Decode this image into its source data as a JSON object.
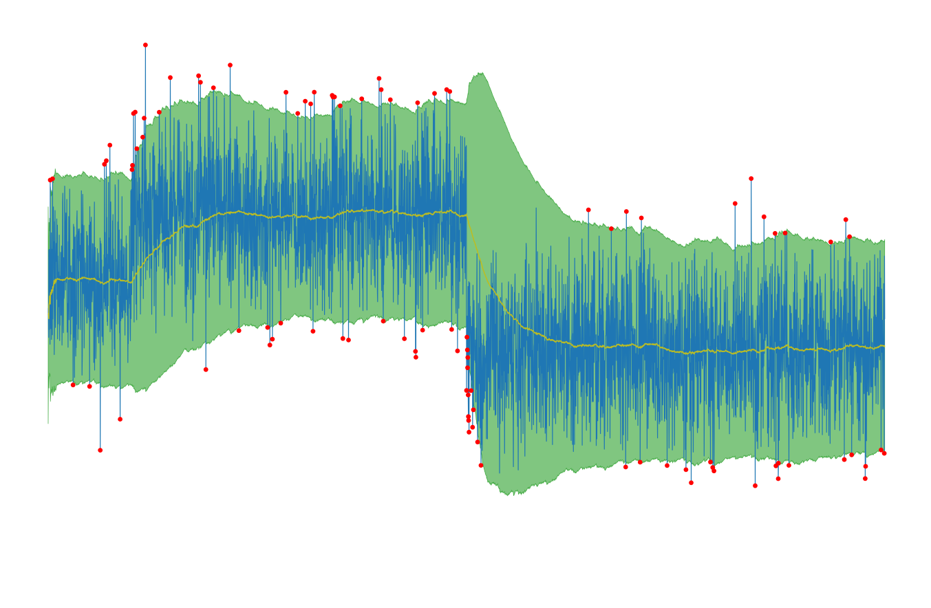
{
  "chart_data": {
    "type": "line",
    "title": "",
    "xlabel": "",
    "ylabel": "",
    "axes_visible": false,
    "grid": false,
    "legend": "none",
    "xlim": [
      0,
      4000
    ],
    "ylim": [
      -6.4,
      5.4
    ],
    "segments": [
      {
        "x_start": 0,
        "x_end": 400,
        "mean": 0.0,
        "std": 1.0
      },
      {
        "x_start": 400,
        "x_end": 2000,
        "mean": 1.4,
        "std": 1.0
      },
      {
        "x_start": 2000,
        "x_end": 4000,
        "mean": -1.4,
        "std": 1.0
      }
    ],
    "series": [
      {
        "name": "",
        "role": "signal",
        "color": "#1f77b4",
        "points": 4000
      },
      {
        "name": "",
        "role": "running-mean",
        "color": "#bcbd22"
      },
      {
        "name": "",
        "role": "confidence-band",
        "color": "#2ca02c",
        "opacity": 0.6,
        "k_sigma": 2.3
      },
      {
        "name": "",
        "role": "anomalies",
        "color": "#ff0000",
        "marker": "circle"
      }
    ]
  }
}
